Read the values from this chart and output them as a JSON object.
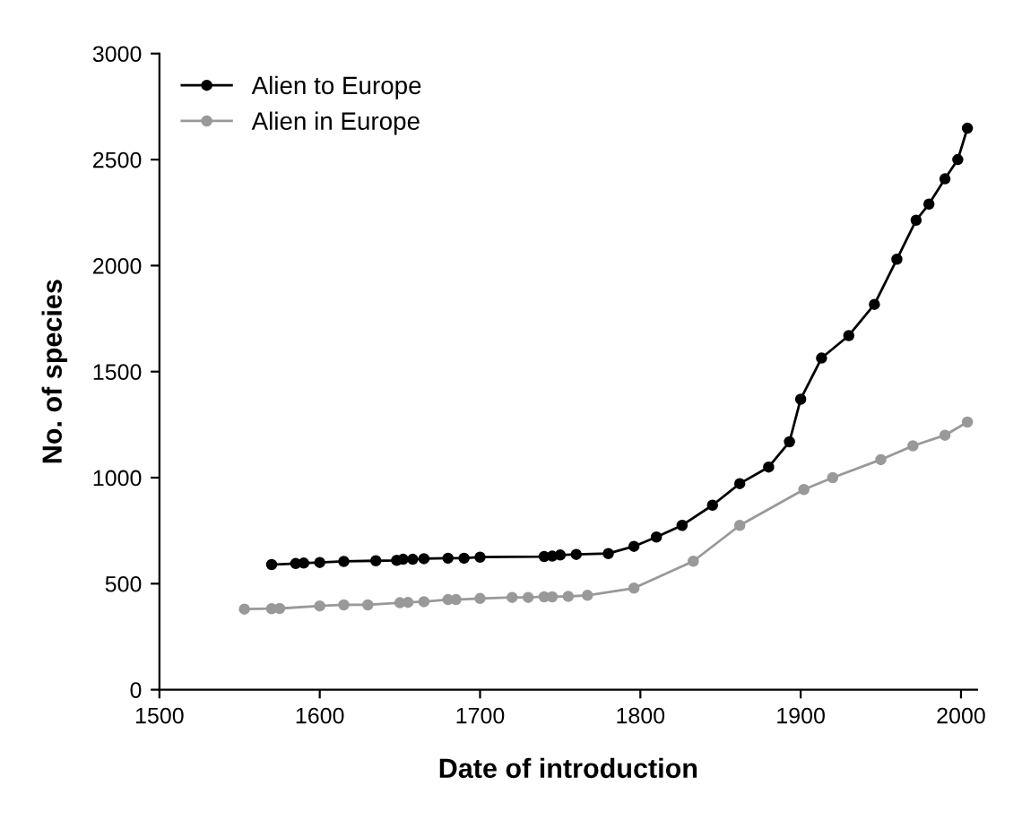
{
  "chart_data": {
    "type": "line",
    "xlabel": "Date of introduction",
    "ylabel": "No. of species",
    "xlim": [
      1500,
      2010
    ],
    "xticks": [
      1500,
      1600,
      1700,
      1800,
      1900,
      2000
    ],
    "ylim": [
      0,
      3000
    ],
    "yticks": [
      0,
      500,
      1000,
      1500,
      2000,
      2500,
      3000
    ],
    "legend": "top left",
    "marker": "circle",
    "grid": false,
    "series": [
      {
        "name": "Alien to Europe",
        "color": "#000000",
        "x": [
          1570,
          1585,
          1590,
          1600,
          1615,
          1635,
          1648,
          1652,
          1658,
          1665,
          1680,
          1690,
          1700,
          1740,
          1745,
          1750,
          1760,
          1780,
          1796,
          1810,
          1826,
          1845,
          1862,
          1880,
          1893,
          1900,
          1913,
          1930,
          1946,
          1960,
          1972,
          1980,
          1990,
          1998,
          2004
        ],
        "values": [
          590,
          595,
          597,
          600,
          605,
          608,
          610,
          615,
          615,
          618,
          620,
          620,
          625,
          628,
          630,
          635,
          638,
          642,
          676,
          720,
          775,
          870,
          972,
          1050,
          1169,
          1370,
          1564,
          1670,
          1817,
          2030,
          2214,
          2290,
          2409,
          2500,
          2648
        ]
      },
      {
        "name": "Alien in Europe",
        "color": "#999999",
        "x": [
          1553,
          1570,
          1575,
          1600,
          1615,
          1630,
          1650,
          1655,
          1665,
          1680,
          1685,
          1700,
          1720,
          1730,
          1740,
          1745,
          1755,
          1767,
          1796,
          1833,
          1862,
          1902,
          1920,
          1950,
          1970,
          1990,
          2004
        ],
        "values": [
          380,
          382,
          383,
          395,
          400,
          400,
          410,
          412,
          415,
          425,
          425,
          430,
          435,
          435,
          438,
          438,
          440,
          445,
          479,
          606,
          775,
          944,
          1000,
          1085,
          1150,
          1200,
          1262
        ]
      }
    ]
  }
}
